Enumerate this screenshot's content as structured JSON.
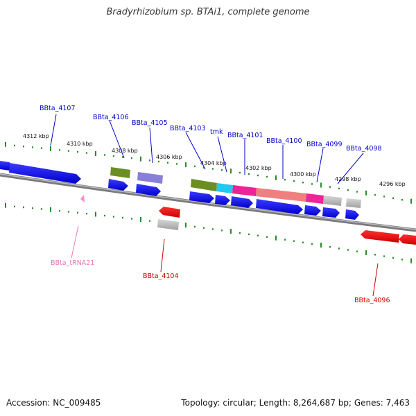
{
  "title": "Bradyrhizobium sp. BTAi1, complete genome",
  "footer": {
    "accession": "Accession: NC_009485",
    "summary": "Topology: circular; Length: 8,264,687 bp; Genes: 7,463"
  },
  "colors": {
    "backbone": "#808080",
    "tick": "#2a8a2a",
    "forward_label": "#0000cc",
    "reverse_label": "#cc0000",
    "trna_label": "#e878b8"
  },
  "ticks": [
    "4312 kbp",
    "4310 kbp",
    "4308 kbp",
    "4306 kbp",
    "4304 kbp",
    "4302 kbp",
    "4300 kbp",
    "4298 kbp",
    "4296 kbp"
  ],
  "genes": [
    {
      "label": "BBta_4107",
      "strand": "forward",
      "color": "#0000ee"
    },
    {
      "label": "BBta_4106",
      "strand": "forward",
      "color": "#0000ee"
    },
    {
      "label": "BBta_4105",
      "strand": "forward",
      "color": "#0000ee"
    },
    {
      "label": "BBta_4104",
      "strand": "reverse",
      "color": "#ee0000"
    },
    {
      "label": "BBta_4103",
      "strand": "forward",
      "color": "#0000ee"
    },
    {
      "label": "tmk",
      "strand": "forward",
      "color": "#0000ee"
    },
    {
      "label": "BBta_4101",
      "strand": "forward",
      "color": "#0000ee"
    },
    {
      "label": "BBta_4100",
      "strand": "forward",
      "color": "#0000ee"
    },
    {
      "label": "BBta_4099",
      "strand": "forward",
      "color": "#0000ee"
    },
    {
      "label": "BBta_4098",
      "strand": "forward",
      "color": "#0000ee"
    },
    {
      "label": "BBta_4096",
      "strand": "reverse",
      "color": "#ee0000"
    },
    {
      "label": "BBta_tRNA21",
      "strand": "reverse",
      "color": "#ff88cc"
    }
  ],
  "feature_colors": {
    "olive": "#6b8e23",
    "violet": "#8a7fd8",
    "cyan": "#22c8ee",
    "magenta": "#ee2299",
    "salmon": "#f08080",
    "gray": "#b0b0b0"
  }
}
